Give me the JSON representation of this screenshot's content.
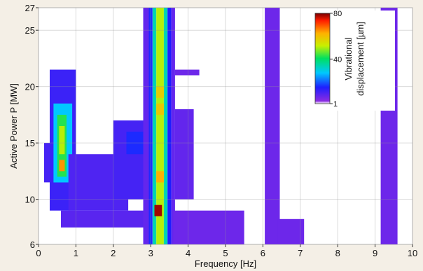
{
  "chart_data": {
    "type": "heatmap",
    "title": "",
    "xlabel": "Frequency [Hz]",
    "ylabel": "Active Power P [MW]",
    "xlim": [
      0,
      10
    ],
    "ylim": [
      6,
      27
    ],
    "x_ticks": [
      "0",
      "1",
      "2",
      "3",
      "4",
      "5",
      "6",
      "7",
      "8",
      "9",
      "10"
    ],
    "y_ticks": [
      "6",
      "10",
      "15",
      "20",
      "25",
      "27"
    ],
    "y_tick_values": [
      6,
      10,
      15,
      20,
      25,
      27
    ],
    "grid": true,
    "colorbar": {
      "label_line1": "Vibrational",
      "label_line2": "displacement [µm]",
      "min": 1,
      "max": 80,
      "ticks": [
        "80",
        "40",
        "1"
      ],
      "tick_values": [
        80,
        40,
        1
      ],
      "position": "top-right"
    },
    "cell_size": {
      "frequency_hz": 0.1,
      "power_mw": 0.25
    },
    "regions": [
      {
        "x": [
          0.15,
          0.3
        ],
        "y": [
          11.5,
          15.0
        ],
        "value": 8
      },
      {
        "x": [
          0.3,
          1.0
        ],
        "y": [
          9.0,
          21.5
        ],
        "value": 9
      },
      {
        "x": [
          0.4,
          0.9
        ],
        "y": [
          11.5,
          18.5
        ],
        "value": 26
      },
      {
        "x": [
          0.5,
          0.75
        ],
        "y": [
          12.0,
          17.5
        ],
        "value": 42
      },
      {
        "x": [
          0.55,
          0.7
        ],
        "y": [
          14.0,
          16.5
        ],
        "value": 50
      },
      {
        "x": [
          0.55,
          0.7
        ],
        "y": [
          12.5,
          13.5
        ],
        "value": 64
      },
      {
        "x": [
          0.8,
          2.4
        ],
        "y": [
          9.0,
          14.0
        ],
        "value": 7
      },
      {
        "x": [
          2.0,
          2.8
        ],
        "y": [
          10.0,
          17.0
        ],
        "value": 8
      },
      {
        "x": [
          2.35,
          2.8
        ],
        "y": [
          14.0,
          16.0
        ],
        "value": 13
      },
      {
        "x": [
          0.6,
          2.8
        ],
        "y": [
          7.5,
          9.0
        ],
        "value": 6
      },
      {
        "x": [
          2.8,
          2.95
        ],
        "y": [
          6,
          27
        ],
        "value": 5
      },
      {
        "x": [
          2.95,
          3.05
        ],
        "y": [
          6,
          27
        ],
        "value": 13
      },
      {
        "x": [
          3.05,
          3.15
        ],
        "y": [
          6,
          27
        ],
        "value": 33
      },
      {
        "x": [
          3.15,
          3.35
        ],
        "y": [
          6,
          27
        ],
        "value": 50
      },
      {
        "x": [
          3.35,
          3.45
        ],
        "y": [
          6,
          27
        ],
        "value": 33
      },
      {
        "x": [
          3.45,
          3.55
        ],
        "y": [
          6,
          27
        ],
        "value": 12
      },
      {
        "x": [
          3.55,
          3.65
        ],
        "y": [
          6,
          27
        ],
        "value": 5
      },
      {
        "x": [
          3.15,
          3.35
        ],
        "y": [
          19.0,
          20.0
        ],
        "value": 57
      },
      {
        "x": [
          3.15,
          3.35
        ],
        "y": [
          17.5,
          18.5
        ],
        "value": 58
      },
      {
        "x": [
          3.15,
          3.35
        ],
        "y": [
          11.5,
          12.5
        ],
        "value": 62
      },
      {
        "x": [
          3.1,
          3.3
        ],
        "y": [
          8.5,
          9.5
        ],
        "value": 78
      },
      {
        "x": [
          3.65,
          4.15
        ],
        "y": [
          10.0,
          18.0
        ],
        "value": 5
      },
      {
        "x": [
          3.6,
          5.5
        ],
        "y": [
          6.0,
          9.0
        ],
        "value": 4
      },
      {
        "x": [
          3.65,
          4.3
        ],
        "y": [
          21.0,
          21.5
        ],
        "value": 4
      },
      {
        "x": [
          6.05,
          6.45
        ],
        "y": [
          6,
          27
        ],
        "value": 4
      },
      {
        "x": [
          6.4,
          7.1
        ],
        "y": [
          6.0,
          8.25
        ],
        "value": 4
      },
      {
        "x": [
          9.15,
          9.6
        ],
        "y": [
          6,
          27
        ],
        "value": 4
      }
    ]
  }
}
